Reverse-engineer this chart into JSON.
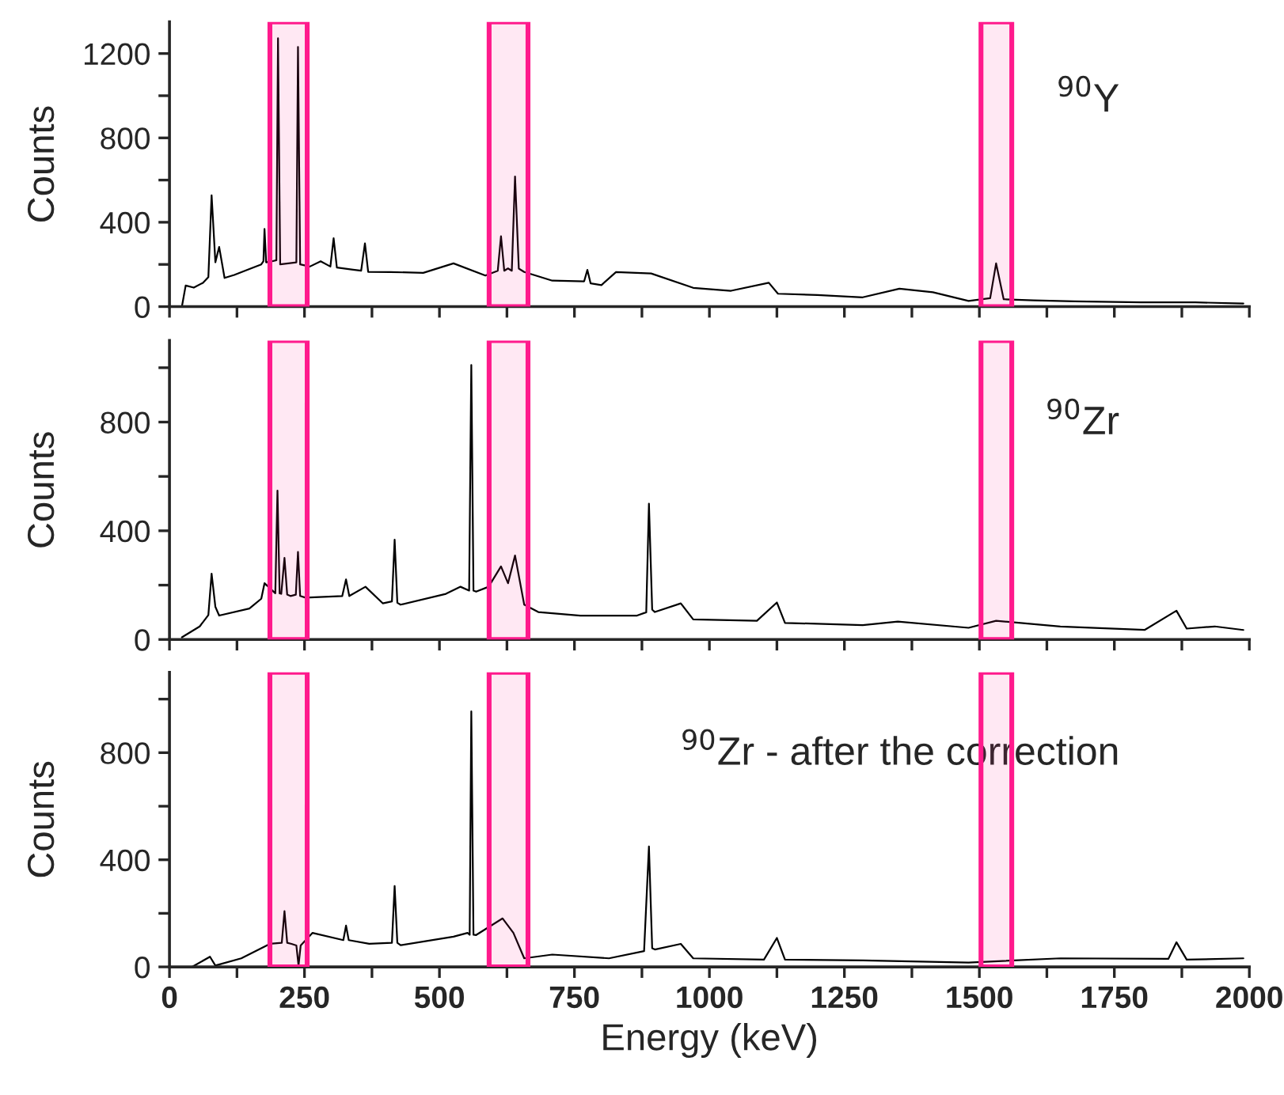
{
  "chart_data": [
    {
      "type": "line",
      "ylabel": "Counts",
      "annotations": [
        "$^{90}$Y"
      ],
      "tick_labels": "y",
      "grid": false,
      "series": [
        {
          "color": "#000000",
          "x": [
            23,
            30,
            45,
            62,
            72,
            78,
            85,
            92,
            102,
            120,
            150,
            170,
            174,
            176,
            179,
            190,
            198,
            201,
            205,
            220,
            235,
            238,
            242,
            260,
            280,
            298,
            304,
            310,
            340,
            355,
            362,
            368,
            409,
            470,
            526,
            585,
            608,
            614,
            620,
            627,
            634,
            640,
            647,
            657,
            709,
            768,
            774,
            780,
            800,
            827,
            892,
            970,
            1040,
            1110,
            1127,
            1200,
            1284,
            1352,
            1414,
            1480,
            1520,
            1531,
            1545,
            1600,
            1676,
            1800,
            1900,
            1989
          ],
          "values": [
            0,
            100,
            90,
            113,
            140,
            528,
            210,
            283,
            136,
            150,
            180,
            200,
            215,
            368,
            210,
            215,
            220,
            1272,
            200,
            205,
            210,
            1231,
            200,
            190,
            215,
            190,
            324,
            185,
            175,
            170,
            300,
            165,
            164,
            160,
            205,
            147,
            170,
            334,
            170,
            181,
            170,
            617,
            180,
            164,
            123,
            120,
            174,
            110,
            102,
            164,
            157,
            89,
            75,
            113,
            61,
            55,
            44,
            85,
            68,
            27,
            40,
            205,
            35,
            30,
            25,
            20,
            20,
            15
          ]
        }
      ],
      "xlim": [
        0,
        2000
      ],
      "xticks": [
        0,
        {
          "value": 125,
          "label": null
        },
        250,
        {
          "value": 375,
          "label": null
        },
        500,
        {
          "value": 625,
          "label": null
        },
        750,
        {
          "value": 875,
          "label": null
        },
        1000,
        {
          "value": 1125,
          "label": null
        },
        1250,
        {
          "value": 1375,
          "label": null
        },
        1500,
        {
          "value": 1625,
          "label": null
        },
        1750,
        {
          "value": 1875,
          "label": null
        },
        2000
      ],
      "ylim": [
        0,
        1350
      ],
      "yticks": [
        0,
        {
          "value": 200,
          "label": null
        },
        400,
        {
          "value": 600,
          "label": null
        },
        800,
        {
          "value": 1000,
          "label": null
        },
        1200
      ],
      "bands": [
        {
          "axis": "x",
          "from": 186,
          "to": 255,
          "color": "#ff1a8c"
        },
        {
          "axis": "x",
          "from": 592,
          "to": 664,
          "color": "#ff1a8c"
        },
        {
          "axis": "x",
          "from": 1503,
          "to": 1560,
          "color": "#ff1a8c"
        }
      ]
    },
    {
      "type": "line",
      "ylabel": "Counts",
      "annotations": [
        "$^{90}$Zr"
      ],
      "tick_labels": "y",
      "grid": false,
      "series": [
        {
          "color": "#000000",
          "x": [
            23,
            56,
            72,
            78,
            85,
            92,
            148,
            170,
            176,
            196,
            200,
            204,
            207,
            213,
            218,
            224,
            234,
            238,
            242,
            252,
            320,
            327,
            333,
            363,
            395,
            412,
            417,
            422,
            428,
            512,
            539,
            555,
            559,
            563,
            568,
            591,
            614,
            627,
            640,
            657,
            683,
            761,
            866,
            883,
            888,
            894,
            899,
            947,
            970,
            1088,
            1125,
            1140,
            1284,
            1349,
            1480,
            1531,
            1650,
            1806,
            1865,
            1884,
            1936,
            1989
          ],
          "values": [
            8,
            48,
            90,
            242,
            120,
            88,
            114,
            150,
            207,
            170,
            548,
            170,
            168,
            300,
            165,
            160,
            165,
            322,
            160,
            154,
            160,
            221,
            160,
            194,
            133,
            140,
            367,
            135,
            128,
            168,
            194,
            180,
            1010,
            180,
            176,
            194,
            269,
            207,
            309,
            128,
            101,
            88,
            88,
            100,
            500,
            110,
            101,
            133,
            74,
            69,
            136,
            61,
            53,
            66,
            43,
            69,
            48,
            35,
            106,
            40,
            48,
            35
          ]
        }
      ],
      "xlim": [
        0,
        2000
      ],
      "xticks": [
        0,
        {
          "value": 125,
          "label": null
        },
        250,
        {
          "value": 375,
          "label": null
        },
        500,
        {
          "value": 625,
          "label": null
        },
        750,
        {
          "value": 875,
          "label": null
        },
        1000,
        {
          "value": 1125,
          "label": null
        },
        1250,
        {
          "value": 1375,
          "label": null
        },
        1500,
        {
          "value": 1625,
          "label": null
        },
        1750,
        {
          "value": 1875,
          "label": null
        },
        2000
      ],
      "ylim": [
        0,
        1100
      ],
      "yticks": [
        0,
        {
          "value": 200,
          "label": null
        },
        400,
        {
          "value": 600,
          "label": null
        },
        800,
        {
          "value": 1000,
          "label": null
        }
      ],
      "bands": [
        {
          "axis": "x",
          "from": 186,
          "to": 255,
          "color": "#ff1a8c"
        },
        {
          "axis": "x",
          "from": 592,
          "to": 664,
          "color": "#ff1a8c"
        },
        {
          "axis": "x",
          "from": 1503,
          "to": 1560,
          "color": "#ff1a8c"
        }
      ]
    },
    {
      "type": "line",
      "ylabel": "Counts",
      "xlabel": "Energy (keV)",
      "annotations": [
        "$^{90}$Zr - after the correction"
      ],
      "grid": false,
      "series": [
        {
          "color": "#000000",
          "x": [
            42,
            75,
            85,
            133,
            186,
            208,
            213,
            218,
            226,
            235,
            239,
            243,
            265,
            322,
            327,
            332,
            370,
            412,
            417,
            422,
            428,
            526,
            552,
            556,
            559,
            563,
            568,
            617,
            637,
            657,
            709,
            814,
            879,
            888,
            894,
            899,
            947,
            970,
            1101,
            1125,
            1140,
            1284,
            1480,
            1650,
            1850,
            1865,
            1884,
            1989
          ],
          "values": [
            0,
            38,
            5,
            32,
            86,
            90,
            208,
            90,
            86,
            80,
            5,
            80,
            127,
            100,
            154,
            100,
            86,
            90,
            302,
            90,
            81,
            113,
            127,
            120,
            954,
            120,
            119,
            181,
            127,
            32,
            46,
            32,
            59,
            450,
            70,
            65,
            86,
            32,
            27,
            108,
            27,
            24,
            16,
            32,
            30,
            92,
            27,
            32
          ]
        }
      ],
      "xlim": [
        0,
        2000
      ],
      "xticks": [
        0,
        {
          "value": 125,
          "label": null
        },
        250,
        {
          "value": 375,
          "label": null
        },
        500,
        {
          "value": 625,
          "label": null
        },
        750,
        {
          "value": 875,
          "label": null
        },
        1000,
        {
          "value": 1125,
          "label": null
        },
        1250,
        {
          "value": 1375,
          "label": null
        },
        1500,
        {
          "value": 1625,
          "label": null
        },
        1750,
        {
          "value": 1875,
          "label": null
        },
        2000
      ],
      "ylim": [
        0,
        1100
      ],
      "yticks": [
        0,
        {
          "value": 200,
          "label": null
        },
        400,
        {
          "value": 600,
          "label": null
        },
        800,
        {
          "value": 1000,
          "label": null
        }
      ],
      "bands": [
        {
          "axis": "x",
          "from": 186,
          "to": 255,
          "color": "#ff1a8c"
        },
        {
          "axis": "x",
          "from": 592,
          "to": 664,
          "color": "#ff1a8c"
        },
        {
          "axis": "x",
          "from": 1503,
          "to": 1560,
          "color": "#ff1a8c"
        }
      ]
    }
  ]
}
